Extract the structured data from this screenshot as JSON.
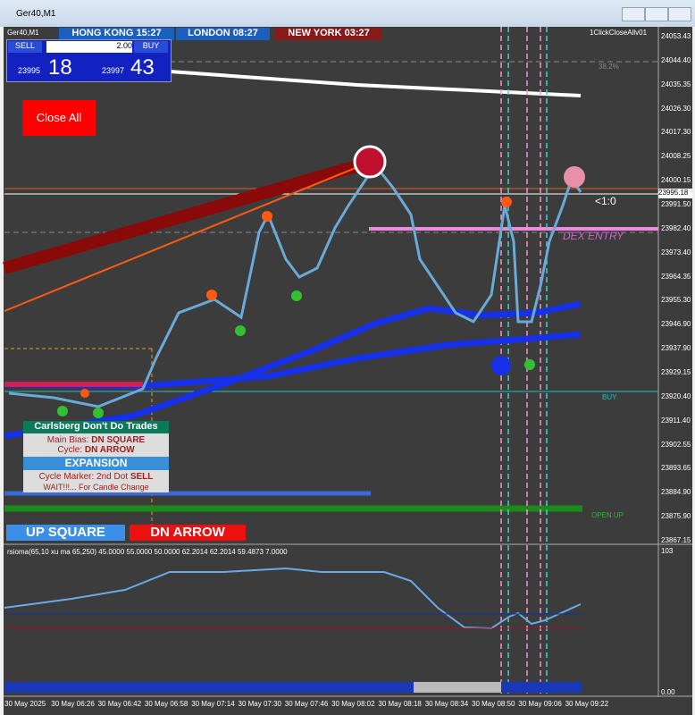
{
  "window": {
    "title": "Ger40,M1"
  },
  "chart": {
    "symbol": "Ger40,M1",
    "sessions": [
      "HONG KONG 15:27",
      "LONDON 08:27",
      "NEW YORK 03:27"
    ],
    "trade_panel": {
      "sell": "SELL",
      "buy": "BUY",
      "lots": "2.00",
      "bid_prefix": "23995",
      "bid_suffix": "18",
      "ask_prefix": "23997",
      "ask_suffix": "43"
    },
    "close_all": "Close All",
    "ea_name": "1ClickCloseAllv01",
    "fib_label": "38.2%",
    "ratio_label": "<1:0",
    "entry_label": "DEX ENTRY",
    "buy_label": "BUY",
    "open_label": "OPEN UP",
    "price_axis": [
      "24053.43",
      "24044.40",
      "24035.35",
      "24026.30",
      "24017.30",
      "24008.25",
      "24000.15",
      "23991.50",
      "23982.40",
      "23973.40",
      "23964.35",
      "23955.30",
      "23946.90",
      "23937.90",
      "23929.15",
      "23920.40",
      "23911.40",
      "23902.55",
      "23893.65",
      "23884.90",
      "23875.90",
      "23867.15"
    ],
    "current_price": "23995.18",
    "info_box": {
      "title": "Carlsberg Don't Do Trades",
      "bias_label": "Main Bias:",
      "bias_value": "DN SQUARE",
      "cycle_label": "Cycle:",
      "cycle_value": "DN ARROW",
      "state": "EXPANSION",
      "marker_label": "Cycle Marker: 2nd Dot",
      "marker_value": "SELL",
      "wait": "WAIT!!!... For Candle Change"
    },
    "badges": [
      "UP SQUARE",
      "DN ARROW"
    ]
  },
  "indicator": {
    "label": "rsioma(65,10 xu ma 65,250) 45.0000 55.0000 50.0000 62.2014 62.2014 59.4873 7.0000",
    "top": "103",
    "bottom": "0.00"
  },
  "time_axis": [
    "30 May 2025",
    "30 May 06:26",
    "30 May 06:42",
    "30 May 06:58",
    "30 May 07:14",
    "30 May 07:30",
    "30 May 07:46",
    "30 May 08:02",
    "30 May 08:18",
    "30 May 08:34",
    "30 May 08:50",
    "30 May 09:06",
    "30 May 09:22"
  ]
}
